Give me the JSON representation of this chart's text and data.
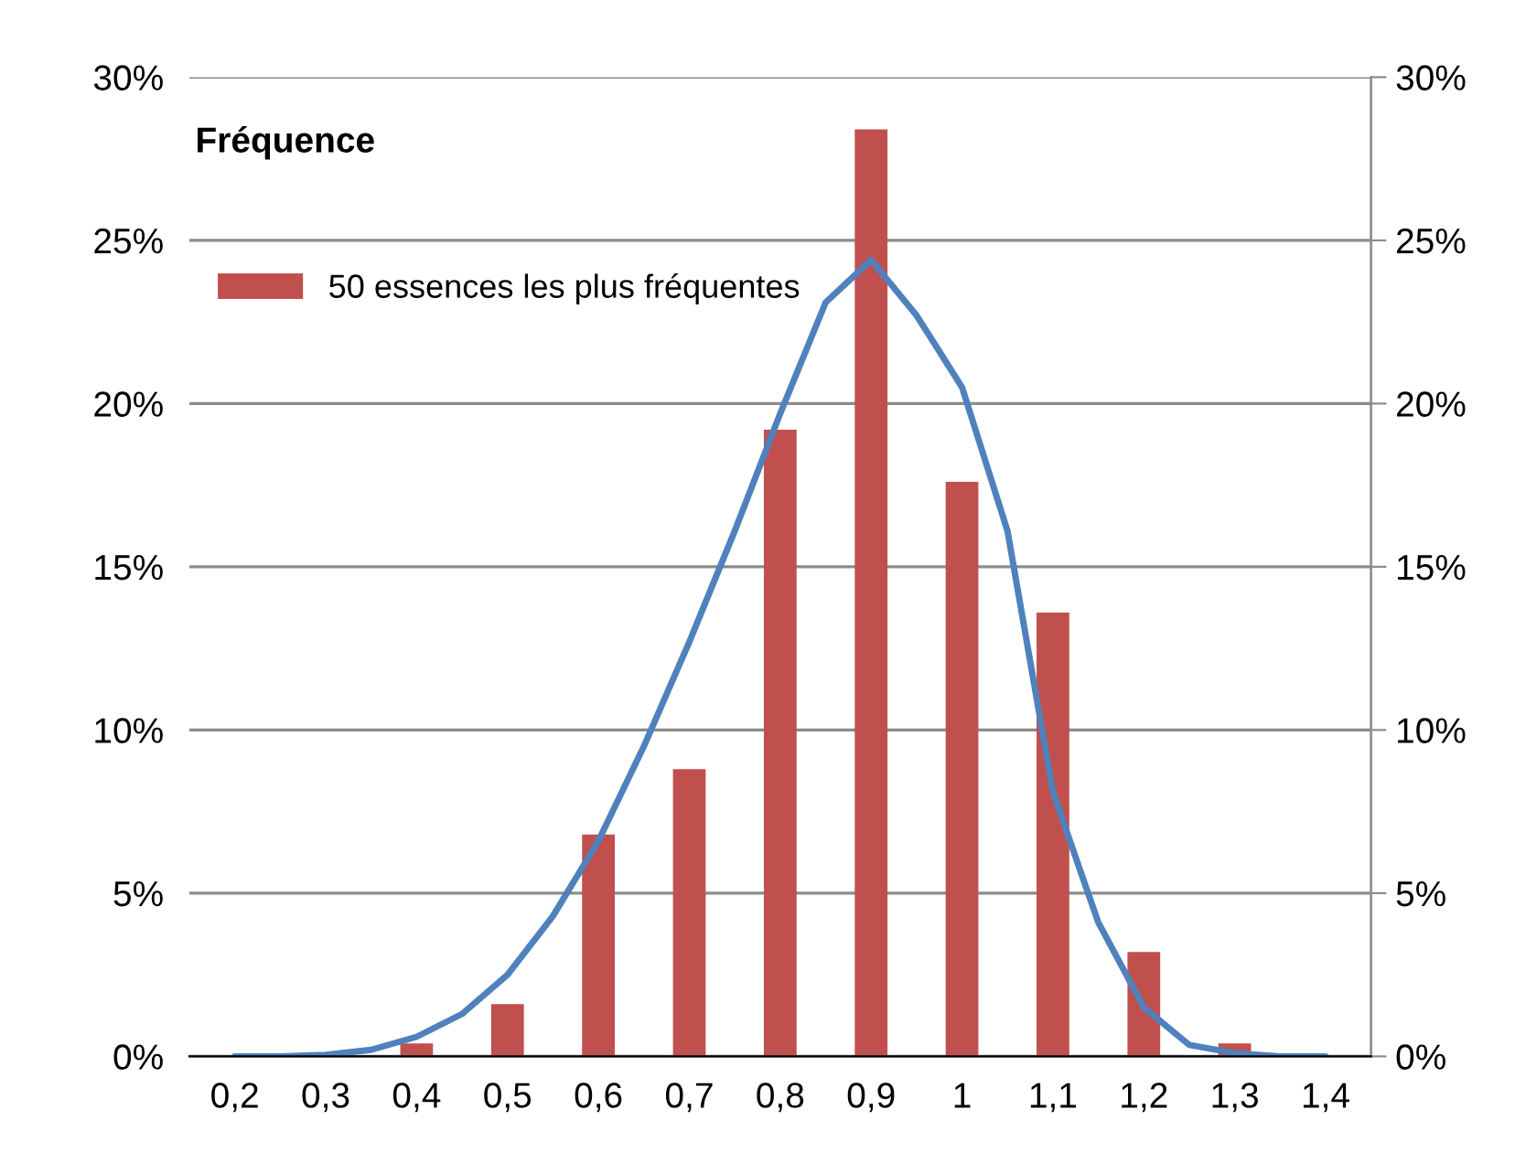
{
  "chart_data": {
    "type": "bar",
    "ylabel": "Fréquence",
    "x": [
      0.2,
      0.3,
      0.4,
      0.5,
      0.6,
      0.7,
      0.8,
      0.9,
      1.0,
      1.1,
      1.2,
      1.3,
      1.4
    ],
    "series": [
      {
        "name": "50 essences les plus fréquentes",
        "color": "#c0504d",
        "values": [
          0,
          0,
          0.4,
          1.6,
          6.8,
          8.8,
          19.2,
          28.4,
          17.6,
          13.6,
          3.2,
          0.4,
          0
        ]
      },
      {
        "type": "line",
        "color": "#4f81bd",
        "x": [
          0.2,
          0.25,
          0.3,
          0.35,
          0.4,
          0.45,
          0.5,
          0.55,
          0.6,
          0.65,
          0.7,
          0.75,
          0.8,
          0.85,
          0.9,
          0.95,
          1.0,
          1.05,
          1.1,
          1.15,
          1.2,
          1.25,
          1.3,
          1.35,
          1.4
        ],
        "values": [
          0,
          0,
          0.05,
          0.2,
          0.6,
          1.3,
          2.5,
          4.3,
          6.6,
          9.5,
          12.7,
          16.1,
          19.7,
          23.1,
          24.4,
          22.7,
          20.5,
          16.1,
          8.1,
          4.1,
          1.5,
          0.35,
          0.1,
          0,
          0
        ]
      }
    ],
    "xlim": [
      0.15,
      1.45
    ],
    "xticks": [
      {
        "value": 0.2,
        "label": "0,2"
      },
      {
        "value": 0.3,
        "label": "0,3"
      },
      {
        "value": 0.4,
        "label": "0,4"
      },
      {
        "value": 0.5,
        "label": "0,5"
      },
      {
        "value": 0.6,
        "label": "0,6"
      },
      {
        "value": 0.7,
        "label": "0,7"
      },
      {
        "value": 0.8,
        "label": "0,8"
      },
      {
        "value": 0.9,
        "label": "0,9"
      },
      {
        "value": 1.0,
        "label": "1"
      },
      {
        "value": 1.1,
        "label": "1,1"
      },
      {
        "value": 1.2,
        "label": "1,2"
      },
      {
        "value": 1.3,
        "label": "1,3"
      },
      {
        "value": 1.4,
        "label": "1,4"
      }
    ],
    "ylim": [
      0,
      30
    ],
    "yticks": [
      {
        "value": 0,
        "label": "0%"
      },
      {
        "value": 5,
        "label": "5%"
      },
      {
        "value": 10,
        "label": "10%"
      },
      {
        "value": 15,
        "label": "15%"
      },
      {
        "value": 20,
        "label": "20%"
      },
      {
        "value": 25,
        "label": "25%"
      },
      {
        "value": 30,
        "label": "30%"
      }
    ],
    "y2lim": [
      0,
      30
    ],
    "y2ticks": [
      {
        "value": 0,
        "label": "0%"
      },
      {
        "value": 5,
        "label": "5%"
      },
      {
        "value": 10,
        "label": "10%"
      },
      {
        "value": 15,
        "label": "15%"
      },
      {
        "value": 20,
        "label": "20%"
      },
      {
        "value": 25,
        "label": "25%"
      },
      {
        "value": 30,
        "label": "30%"
      }
    ],
    "grid": "y",
    "legend": "top left",
    "marker": "none",
    "line_style": "solid"
  }
}
